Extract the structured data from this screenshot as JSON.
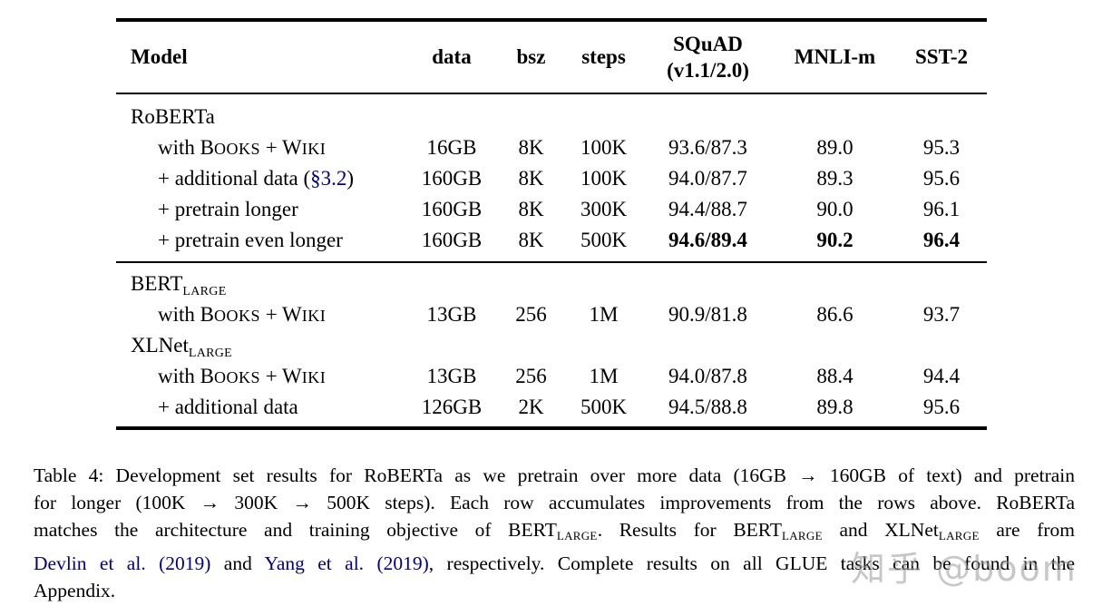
{
  "colors": {
    "text": "#000000",
    "background": "#ffffff",
    "link_blue": "#00008b",
    "watermark_gray": "#9a9a9a"
  },
  "table": {
    "columns": [
      {
        "label": "Model"
      },
      {
        "label": "data"
      },
      {
        "label": "bsz"
      },
      {
        "label": "steps"
      },
      {
        "label": "SQuAD",
        "label2": "(v1.1/2.0)"
      },
      {
        "label": "MNLI-m"
      },
      {
        "label": "SST-2"
      }
    ],
    "sections": [
      {
        "rows": [
          {
            "model": [
              {
                "t": "RoBERTa"
              }
            ],
            "indent": false,
            "cells": [
              "",
              "",
              "",
              "",
              "",
              ""
            ]
          },
          {
            "model": [
              {
                "t": "with B"
              },
              {
                "t": "OOKS",
                "s": "sc"
              },
              {
                "t": " + W"
              },
              {
                "t": "IKI",
                "s": "sc"
              }
            ],
            "indent": true,
            "cells": [
              "16GB",
              "8K",
              "100K",
              "93.6/87.3",
              "89.0",
              "95.3"
            ]
          },
          {
            "model": [
              {
                "t": "+ additional data ("
              },
              {
                "t": "§3.2",
                "s": "link",
                "n": "section-3-2-link"
              },
              {
                "t": ")"
              }
            ],
            "indent": true,
            "cells": [
              "160GB",
              "8K",
              "100K",
              "94.0/87.7",
              "89.3",
              "95.6"
            ]
          },
          {
            "model": [
              {
                "t": "+ pretrain longer"
              }
            ],
            "indent": true,
            "cells": [
              "160GB",
              "8K",
              "300K",
              "94.4/88.7",
              "90.0",
              "96.1"
            ]
          },
          {
            "model": [
              {
                "t": "+ pretrain even longer"
              }
            ],
            "indent": true,
            "cells": [
              "160GB",
              "8K",
              "500K",
              "94.6/89.4",
              "90.2",
              "96.4"
            ],
            "bold_cells": [
              3,
              4,
              5
            ]
          }
        ]
      },
      {
        "rows": [
          {
            "model": [
              {
                "t": "BERT"
              },
              {
                "t": "LARGE",
                "s": "sub"
              }
            ],
            "indent": false,
            "cells": [
              "",
              "",
              "",
              "",
              "",
              ""
            ]
          },
          {
            "model": [
              {
                "t": "with B"
              },
              {
                "t": "OOKS",
                "s": "sc"
              },
              {
                "t": " + W"
              },
              {
                "t": "IKI",
                "s": "sc"
              }
            ],
            "indent": true,
            "cells": [
              "13GB",
              "256",
              "1M",
              "90.9/81.8",
              "86.6",
              "93.7"
            ]
          },
          {
            "model": [
              {
                "t": "XLNet"
              },
              {
                "t": "LARGE",
                "s": "sub"
              }
            ],
            "indent": false,
            "cells": [
              "",
              "",
              "",
              "",
              "",
              ""
            ]
          },
          {
            "model": [
              {
                "t": "with B"
              },
              {
                "t": "OOKS",
                "s": "sc"
              },
              {
                "t": " + W"
              },
              {
                "t": "IKI",
                "s": "sc"
              }
            ],
            "indent": true,
            "cells": [
              "13GB",
              "256",
              "1M",
              "94.0/87.8",
              "88.4",
              "94.4"
            ]
          },
          {
            "model": [
              {
                "t": "+ additional data"
              }
            ],
            "indent": true,
            "cells": [
              "126GB",
              "2K",
              "500K",
              "94.5/88.8",
              "89.8",
              "95.6"
            ]
          }
        ]
      }
    ]
  },
  "caption": {
    "lines": [
      [
        {
          "t": "Table 4: Development set results for RoBERTa as we pretrain over more data (16GB → 160GB of text) and pretrain"
        }
      ],
      [
        {
          "t": "for longer (100K → 300K → 500K steps). Each row accumulates improvements from the rows above. RoBERTa"
        }
      ],
      [
        {
          "t": "matches the architecture and training objective of BERT"
        },
        {
          "t": "LARGE",
          "s": "sub"
        },
        {
          "t": ". Results for BERT"
        },
        {
          "t": "LARGE",
          "s": "sub"
        },
        {
          "t": " and XLNet"
        },
        {
          "t": "LARGE",
          "s": "sub"
        },
        {
          "t": " are from"
        }
      ],
      [
        {
          "t": "Devlin et al. (2019)",
          "s": "link",
          "n": "citation-devlin-2019-link"
        },
        {
          "t": " and "
        },
        {
          "t": "Yang et al. (2019)",
          "s": "link",
          "n": "citation-yang-2019-link"
        },
        {
          "t": ", respectively. Complete results on all GLUE tasks can be found in the"
        }
      ],
      [
        {
          "t": "Appendix."
        }
      ]
    ]
  },
  "watermark": {
    "text": "知乎 @boom"
  }
}
